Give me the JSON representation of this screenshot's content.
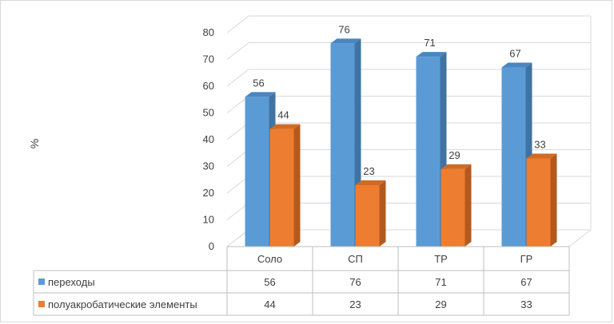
{
  "chart_data": {
    "type": "bar",
    "ylabel": "%",
    "ylim": [
      0,
      80
    ],
    "yticks": [
      0,
      10,
      20,
      30,
      40,
      50,
      60,
      70,
      80
    ],
    "categories": [
      "Соло",
      "СП",
      "ТР",
      "ГР"
    ],
    "series": [
      {
        "name": "переходы",
        "values": [
          56,
          76,
          71,
          67
        ],
        "color": "#5b9bd5",
        "color_side": "#3f73a3",
        "color_top": "#4a86bf"
      },
      {
        "name": "полуакробатические элементы",
        "values": [
          44,
          23,
          29,
          33
        ],
        "color": "#ed7d31",
        "color_side": "#b25a1e",
        "color_top": "#d06a25"
      }
    ],
    "grid": true,
    "legend": "data-table",
    "three_d": true
  }
}
